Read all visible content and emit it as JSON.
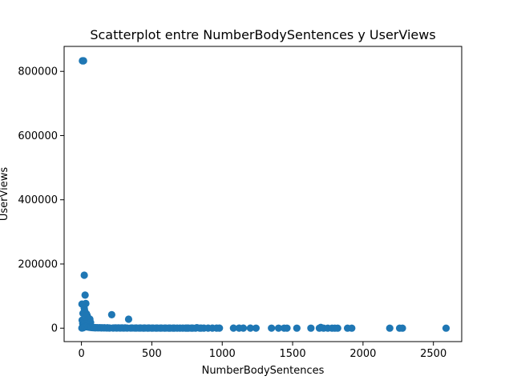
{
  "chart_data": {
    "type": "scatter",
    "title": "Scatterplot entre NumberBodySentences y UserViews",
    "xlabel": "NumberBodySentences",
    "ylabel": "UserViews",
    "xlim": [
      -123,
      2701
    ],
    "ylim": [
      -41800,
      877800
    ],
    "xticks": [
      0,
      500,
      1000,
      1500,
      2000,
      2500
    ],
    "xtick_labels": [
      "0",
      "500",
      "1000",
      "1500",
      "2000",
      "2500"
    ],
    "yticks": [
      0,
      200000,
      400000,
      600000,
      800000
    ],
    "ytick_labels": [
      "0",
      "200000",
      "400000",
      "600000",
      "800000"
    ],
    "grid": false,
    "marker_color": "#1f77b4",
    "series": [
      {
        "x": [
          7,
          12,
          15,
          20,
          26,
          31,
          4,
          20,
          22,
          11,
          25,
          35,
          40,
          45,
          52,
          60,
          5,
          15,
          28,
          65,
          9,
          18,
          30,
          48,
          62,
          14,
          38,
          23,
          33,
          42,
          56,
          74,
          84,
          98,
          112,
          130,
          148,
          165,
          185,
          215,
          240,
          262,
          288,
          310,
          335,
          360,
          390,
          420,
          450,
          480,
          510,
          540,
          570,
          600,
          630,
          660,
          700,
          740,
          760,
          790,
          820,
          850,
          870,
          900,
          930,
          960,
          980,
          1080,
          1120,
          1150,
          1200,
          1240,
          1350,
          1400,
          1440,
          1460,
          1530,
          1630,
          1690,
          1700,
          1720,
          1750,
          1780,
          1800,
          1820,
          1890,
          1920,
          2190,
          2260,
          2280,
          2590,
          3,
          6,
          10,
          14,
          18,
          24,
          30,
          36,
          44,
          50,
          58,
          66,
          72,
          80,
          90,
          100,
          120,
          140,
          160,
          180,
          200,
          225,
          250,
          275,
          300,
          325,
          350,
          380,
          410,
          440,
          470,
          500,
          530,
          560,
          590,
          620,
          650,
          680,
          720,
          750,
          780,
          810,
          840
        ],
        "y": [
          833000,
          833000,
          833000,
          165000,
          103000,
          77000,
          75000,
          62000,
          55000,
          46000,
          48000,
          45000,
          40000,
          34000,
          30000,
          28000,
          25000,
          22000,
          20000,
          18000,
          15000,
          14000,
          12000,
          10000,
          9000,
          8000,
          7000,
          6000,
          5000,
          4000,
          3000,
          2500,
          2000,
          1800,
          1600,
          1500,
          1400,
          1300,
          1200,
          42000,
          1100,
          1000,
          900,
          800,
          28000,
          700,
          650,
          600,
          550,
          500,
          450,
          400,
          380,
          360,
          340,
          320,
          300,
          280,
          270,
          260,
          1500,
          250,
          240,
          230,
          220,
          210,
          200,
          190,
          180,
          170,
          160,
          150,
          140,
          130,
          120,
          110,
          100,
          95,
          90,
          2500,
          85,
          80,
          75,
          70,
          65,
          60,
          55,
          50,
          45,
          40,
          35,
          500,
          800,
          1000,
          2000,
          3000,
          4000,
          5000,
          6000,
          7000,
          3500,
          3000,
          2500,
          2000,
          1800,
          1500,
          1200,
          1000,
          900,
          800,
          700,
          650,
          600,
          550,
          500,
          450,
          420,
          400,
          380,
          360,
          340,
          320,
          300,
          280,
          260,
          240,
          220,
          200,
          190,
          180,
          170,
          160,
          150,
          140
        ]
      }
    ]
  }
}
